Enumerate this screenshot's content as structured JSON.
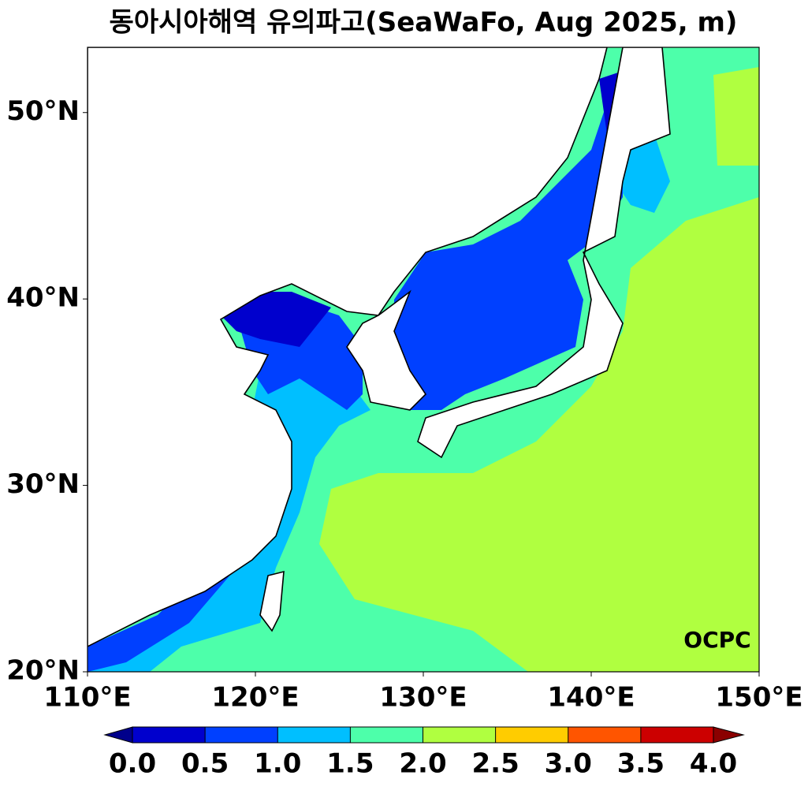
{
  "title": "동아시아해역 유의파고(SeaWaFo, Aug 2025, m)",
  "map": {
    "xlim": [
      110,
      150
    ],
    "ylim": [
      20,
      53.5
    ],
    "xticks": [
      {
        "value": 110,
        "label": "110°E"
      },
      {
        "value": 120,
        "label": "120°E"
      },
      {
        "value": 130,
        "label": "130°E"
      },
      {
        "value": 140,
        "label": "140°E"
      },
      {
        "value": 150,
        "label": "150°E"
      }
    ],
    "yticks": [
      {
        "value": 20,
        "label": "20°N"
      },
      {
        "value": 30,
        "label": "30°N"
      },
      {
        "value": 40,
        "label": "40°N"
      },
      {
        "value": 50,
        "label": "50°N"
      }
    ]
  },
  "colorbar": {
    "ticks": [
      {
        "value": 0,
        "label": "0.0"
      },
      {
        "value": 0.5,
        "label": "0.5"
      },
      {
        "value": 1,
        "label": "1.0"
      },
      {
        "value": 1.5,
        "label": "1.5"
      },
      {
        "value": 2,
        "label": "2.0"
      },
      {
        "value": 2.5,
        "label": "2.5"
      },
      {
        "value": 3,
        "label": "3.0"
      },
      {
        "value": 3.5,
        "label": "3.5"
      },
      {
        "value": 4,
        "label": "4.0"
      }
    ],
    "colors": [
      "#0000cd",
      "#0040ff",
      "#00bfff",
      "#4dffaa",
      "#b0ff40",
      "#ffcc00",
      "#ff5500",
      "#cc0000"
    ],
    "under_color": "#00008b",
    "over_color": "#8b0000"
  },
  "logo": "OCPC"
}
